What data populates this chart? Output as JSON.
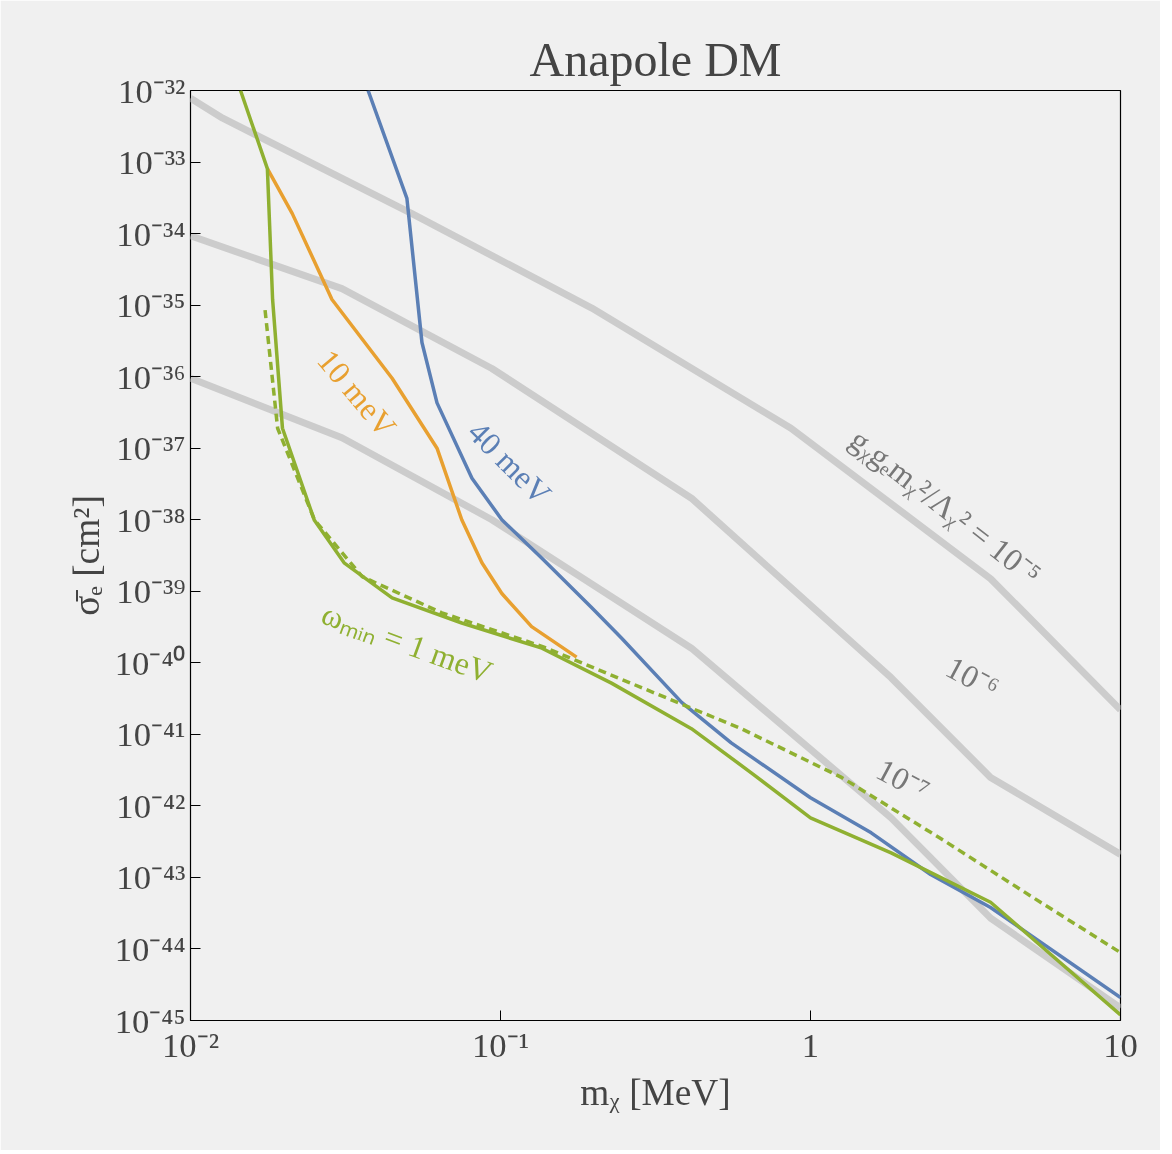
{
  "chart_data": {
    "type": "line",
    "title": "Anapole DM",
    "xlabel": "mᵪ [MeV]",
    "ylabel": "σ̄ₑ [cm²]",
    "log": "xy",
    "grid": false,
    "xlim": [
      0.01,
      10
    ],
    "ylim": [
      1e-45,
      1e-32
    ],
    "xticks": [
      {
        "value": 0.01,
        "label": "10⁻²"
      },
      {
        "value": 0.1,
        "label": "10⁻¹"
      },
      1,
      10
    ],
    "yticks": [
      {
        "value": 1e-32,
        "label": "10⁻³²"
      },
      {
        "value": 1e-33,
        "label": "10⁻³³"
      },
      {
        "value": 1e-34,
        "label": "10⁻³⁴"
      },
      {
        "value": 1e-35,
        "label": "10⁻³⁵"
      },
      {
        "value": 1e-36,
        "label": "10⁻³⁶"
      },
      {
        "value": 1e-37,
        "label": "10⁻³⁷"
      },
      {
        "value": 1e-38,
        "label": "10⁻³⁸"
      },
      {
        "value": 1e-39,
        "label": "10⁻³⁹"
      },
      {
        "value": 1e-40,
        "label": "10⁻⁴⁰"
      },
      {
        "value": 1e-41,
        "label": "10⁻⁴¹"
      },
      {
        "value": 1e-42,
        "label": "10⁻⁴²"
      },
      {
        "value": 1e-43,
        "label": "10⁻⁴³"
      },
      {
        "value": 1e-44,
        "label": "10⁻⁴⁴"
      },
      {
        "value": 1e-45,
        "label": "10⁻⁴⁵"
      }
    ],
    "series": [
      {
        "name": "gᵪgₑmᵪ²/Λᵪ² = 10⁻⁵",
        "color": "#cccccc",
        "x": [
          0.01,
          0.0127,
          0.0518,
          0.197,
          0.865,
          3.81,
          10
        ],
        "values": [
          7.8e-33,
          4.1e-33,
          1.9e-34,
          9.1e-36,
          1.9e-37,
          1.5e-39,
          2.2e-41
        ]
      },
      {
        "name": "10⁻⁶",
        "color": "#cccccc",
        "x": [
          0.01,
          0.0308,
          0.0938,
          0.413,
          1.82,
          3.81,
          10
        ],
        "values": [
          9.3e-35,
          1.7e-35,
          1.3e-36,
          2e-38,
          6.2e-41,
          2.5e-42,
          2.1e-43
        ]
      },
      {
        "name": "10⁻⁷",
        "color": "#cccccc",
        "x": [
          0.01,
          0.0308,
          0.0938,
          0.413,
          1.82,
          3.81,
          10
        ],
        "values": [
          9.5e-37,
          1.4e-37,
          1e-38,
          1.6e-40,
          6.8e-43,
          2.7e-44,
          1.5e-45
        ]
      },
      {
        "name": "40 meV",
        "color": "#5b7fb5",
        "x": [
          0.0374,
          0.0499,
          0.0558,
          0.0624,
          0.0809,
          0.101,
          0.136,
          0.197,
          0.246,
          0.384,
          0.555,
          1.0,
          1.57,
          2.44,
          3.81,
          10
        ],
        "values": [
          1e-32,
          3.1e-34,
          3e-36,
          4.3e-37,
          3.8e-38,
          1e-38,
          2.9e-39,
          5.9e-40,
          2.2e-40,
          2.8e-41,
          7.6e-42,
          1.3e-42,
          4.2e-43,
          1.1e-43,
          3.8e-44,
          2.1e-45
        ]
      },
      {
        "name": "10 meV",
        "color": "#e8a030",
        "x": [
          0.0177,
          0.0213,
          0.0286,
          0.0447,
          0.0624,
          0.075,
          0.0871,
          0.101,
          0.126,
          0.176
        ],
        "values": [
          8.1e-34,
          1.9e-34,
          1.2e-35,
          9.5e-37,
          1e-37,
          1e-38,
          2.5e-39,
          9.3e-40,
          3.2e-40,
          1.2e-40
        ]
      },
      {
        "color": "#8fb031",
        "line_style": "dashed",
        "x": [
          0.0174,
          0.0191,
          0.0251,
          0.0358,
          0.0647,
          0.136,
          0.285,
          0.598,
          1.26,
          2.63,
          5.52,
          10
        ],
        "values": [
          8.5e-36,
          1.9e-37,
          1e-38,
          1.6e-39,
          5e-40,
          1.7e-40,
          4.5e-41,
          1.2e-41,
          2.5e-42,
          3.5e-43,
          4.5e-44,
          8.9e-45
        ]
      },
      {
        "name": "ωₘᵢₙ = 1 meV",
        "color": "#8fb031",
        "x": [
          0.0145,
          0.0177,
          0.0184,
          0.0198,
          0.0251,
          0.0313,
          0.0447,
          0.075,
          0.136,
          0.228,
          0.413,
          0.644,
          1.0,
          1.82,
          3.81,
          10
        ],
        "values": [
          1e-32,
          8.1e-34,
          1.2e-35,
          1.9e-37,
          9.8e-39,
          2.5e-39,
          8.1e-40,
          3.6e-40,
          1.6e-40,
          5.2e-41,
          1.2e-41,
          2.9e-42,
          6.8e-43,
          2.2e-43,
          4.5e-44,
          1.2e-45
        ]
      }
    ]
  }
}
